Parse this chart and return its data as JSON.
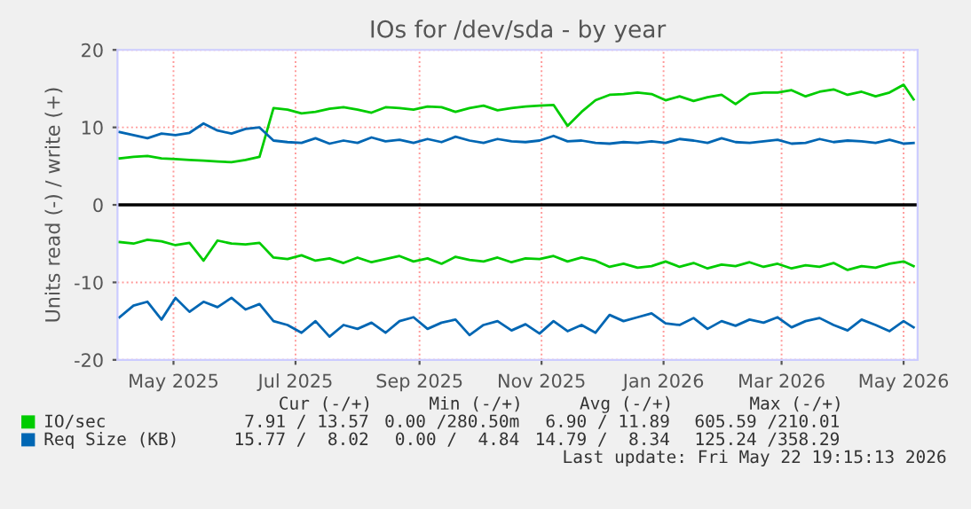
{
  "chart_data": {
    "type": "line",
    "title": "IOs for /dev/sda - by year",
    "ylabel": "Units read (-) / write (+)",
    "x": [
      "2025-04-19",
      "2025-04-26",
      "2025-05-03",
      "2025-05-10",
      "2025-05-17",
      "2025-05-24",
      "2025-05-31",
      "2025-06-07",
      "2025-06-14",
      "2025-06-21",
      "2025-06-28",
      "2025-07-05",
      "2025-07-12",
      "2025-07-19",
      "2025-07-26",
      "2025-08-02",
      "2025-08-09",
      "2025-08-16",
      "2025-08-23",
      "2025-08-30",
      "2025-09-06",
      "2025-09-13",
      "2025-09-20",
      "2025-09-27",
      "2025-10-04",
      "2025-10-11",
      "2025-10-18",
      "2025-10-25",
      "2025-11-01",
      "2025-11-08",
      "2025-11-15",
      "2025-11-22",
      "2025-11-29",
      "2025-12-06",
      "2025-12-13",
      "2025-12-20",
      "2025-12-27",
      "2026-01-03",
      "2026-01-10",
      "2026-01-17",
      "2026-01-24",
      "2026-01-31",
      "2026-02-07",
      "2026-02-14",
      "2026-02-21",
      "2026-02-28",
      "2026-03-07",
      "2026-03-14",
      "2026-03-21",
      "2026-03-28",
      "2026-04-04",
      "2026-04-11",
      "2026-04-18",
      "2026-04-25",
      "2026-05-02",
      "2026-05-09",
      "2026-05-16",
      "2026-05-21"
    ],
    "series": [
      {
        "name": "IO/sec",
        "color": "#00cc00",
        "values": [
          6.0,
          6.2,
          6.3,
          6.0,
          5.9,
          5.8,
          5.7,
          5.6,
          5.5,
          5.8,
          6.2,
          12.5,
          12.3,
          11.8,
          12.0,
          12.4,
          12.6,
          12.3,
          11.9,
          12.6,
          12.5,
          12.3,
          12.7,
          12.6,
          12.0,
          12.5,
          12.8,
          12.2,
          12.5,
          12.7,
          12.8,
          12.9,
          10.2,
          12.0,
          13.5,
          14.2,
          14.3,
          14.5,
          14.3,
          13.5,
          14.0,
          13.4,
          13.9,
          14.2,
          13.0,
          14.3,
          14.5,
          14.5,
          14.8,
          14.0,
          14.6,
          14.9,
          14.2,
          14.6,
          14.0,
          14.5,
          15.5,
          13.6
        ]
      },
      {
        "color": "#00cc00",
        "values": [
          -4.8,
          -5.0,
          -4.5,
          -4.7,
          -5.2,
          -4.9,
          -7.2,
          -4.6,
          -5.0,
          -5.1,
          -4.9,
          -6.8,
          -7.0,
          -6.5,
          -7.2,
          -6.9,
          -7.5,
          -6.8,
          -7.4,
          -7.0,
          -6.6,
          -7.3,
          -6.9,
          -7.6,
          -6.7,
          -7.1,
          -7.3,
          -6.8,
          -7.4,
          -6.9,
          -7.0,
          -6.6,
          -7.3,
          -6.8,
          -7.2,
          -8.0,
          -7.6,
          -8.1,
          -7.9,
          -7.3,
          -8.0,
          -7.5,
          -8.2,
          -7.7,
          -7.9,
          -7.4,
          -8.0,
          -7.6,
          -8.2,
          -7.8,
          -8.0,
          -7.5,
          -8.4,
          -7.9,
          -8.1,
          -7.6,
          -7.3,
          -7.9
        ]
      },
      {
        "name": "Req Size (KB)",
        "color": "#0066b3",
        "values": [
          9.4,
          9.0,
          8.6,
          9.2,
          9.0,
          9.3,
          10.5,
          9.6,
          9.2,
          9.8,
          10.0,
          8.3,
          8.1,
          8.0,
          8.6,
          7.9,
          8.3,
          8.0,
          8.7,
          8.2,
          8.4,
          8.0,
          8.5,
          8.1,
          8.8,
          8.3,
          8.0,
          8.5,
          8.2,
          8.1,
          8.3,
          8.9,
          8.2,
          8.3,
          8.0,
          7.9,
          8.1,
          8.0,
          8.2,
          8.0,
          8.5,
          8.3,
          8.0,
          8.6,
          8.1,
          8.0,
          8.2,
          8.4,
          7.9,
          8.0,
          8.5,
          8.1,
          8.3,
          8.2,
          8.0,
          8.4,
          7.9,
          8.0
        ]
      },
      {
        "color": "#0066b3",
        "values": [
          -14.5,
          -13.0,
          -12.5,
          -14.8,
          -12.0,
          -13.8,
          -12.5,
          -13.2,
          -12.0,
          -13.5,
          -12.8,
          -15.0,
          -15.5,
          -16.5,
          -15.0,
          -17.0,
          -15.5,
          -16.0,
          -15.2,
          -16.5,
          -15.0,
          -14.5,
          -16.0,
          -15.2,
          -14.8,
          -16.8,
          -15.5,
          -15.0,
          -16.2,
          -15.4,
          -16.6,
          -15.0,
          -16.3,
          -15.5,
          -16.5,
          -14.2,
          -15.0,
          -14.5,
          -14.0,
          -15.3,
          -15.5,
          -14.6,
          -16.0,
          -15.0,
          -15.6,
          -14.8,
          -15.2,
          -14.5,
          -15.8,
          -15.0,
          -14.6,
          -15.5,
          -16.2,
          -14.8,
          -15.5,
          -16.3,
          -15.0,
          -15.8
        ]
      }
    ],
    "xlim": [
      "2025-04-18",
      "2026-05-23"
    ],
    "xticks": [
      {
        "value": "2025-05-16",
        "label": "May 2025"
      },
      {
        "value": "2025-07-16",
        "label": "Jul 2025"
      },
      {
        "value": "2025-09-16",
        "label": "Sep 2025"
      },
      {
        "value": "2025-11-16",
        "label": "Nov 2025"
      },
      {
        "value": "2026-01-16",
        "label": "Jan 2026"
      },
      {
        "value": "2026-03-16",
        "label": "Mar 2026"
      },
      {
        "value": "2026-05-16",
        "label": "May 2026"
      }
    ],
    "ylim": [
      -20,
      20
    ],
    "yticks": [
      -20,
      -10,
      0,
      10,
      20
    ],
    "ref_lines": [
      {
        "axis": "y",
        "value": 0,
        "color": "#000000"
      }
    ],
    "grid": true,
    "legend": "bottom",
    "marker": "none",
    "line_style": "solid",
    "annotations": [
      "Cur (-/+)",
      "Min (-/+)",
      "Avg (-/+)",
      "Max (-/+)",
      "7.91 / 13.57",
      "0.00 /280.50m",
      "6.90 / 11.89",
      "605.59 /210.01",
      "15.77 /  8.02",
      "0.00 /  4.84",
      "14.79 /  8.34",
      "125.24 /358.29",
      "Last update: Fri May 22 19:15:13 2026"
    ]
  }
}
